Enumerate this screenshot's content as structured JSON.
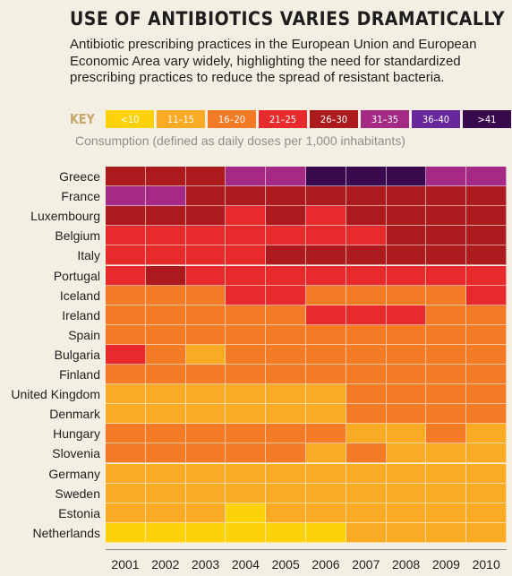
{
  "title": "USE OF ANTIBIOTICS VARIES DRAMATICALLY",
  "subtitle": "Antibiotic prescribing practices in the European Union and European Economic Area vary widely, highlighting the need for standardized prescribing practices to reduce the spread of resistant bacteria.",
  "key": {
    "label": "KEY",
    "items": [
      {
        "label": "<10",
        "color": "#fdd20a"
      },
      {
        "label": "11–15",
        "color": "#fbab23"
      },
      {
        "label": "16–20",
        "color": "#f57a25"
      },
      {
        "label": "21–25",
        "color": "#e82a2c"
      },
      {
        "label": "26–30",
        "color": "#ad1a1d"
      },
      {
        "label": "31–35",
        "color": "#a52a86"
      },
      {
        "label": "36–40",
        "color": "#68279a"
      },
      {
        "label": ">41",
        "color": "#3a0a4f"
      }
    ],
    "note": "Consumption (defined as daily doses per 1,000 inhabitants)"
  },
  "chart_data": {
    "type": "heatmap",
    "x": [
      "2001",
      "2002",
      "2003",
      "2004",
      "2005",
      "2006",
      "2007",
      "2008",
      "2009",
      "2010"
    ],
    "y": [
      "Greece",
      "France",
      "Luxembourg",
      "Belgium",
      "Italy",
      "Portugal",
      "Iceland",
      "Ireland",
      "Spain",
      "Bulgaria",
      "Finland",
      "United Kingdom",
      "Denmark",
      "Hungary",
      "Slovenia",
      "Germany",
      "Sweden",
      "Estonia",
      "Netherlands"
    ],
    "value_encoding": "legend category index: 0 = <10, 1 = 11–15, 2 = 16–20, 3 = 21–25, 4 = 26–30, 5 = 31–35, 6 = 36–40, 7 = >41",
    "values": [
      [
        4,
        4,
        4,
        5,
        5,
        7,
        7,
        7,
        5,
        5
      ],
      [
        5,
        5,
        4,
        4,
        4,
        4,
        4,
        4,
        4,
        4
      ],
      [
        4,
        4,
        4,
        3,
        4,
        3,
        4,
        4,
        4,
        4
      ],
      [
        3,
        3,
        3,
        3,
        3,
        3,
        3,
        4,
        4,
        4
      ],
      [
        3,
        3,
        3,
        3,
        4,
        4,
        4,
        4,
        4,
        4
      ],
      [
        3,
        4,
        3,
        3,
        3,
        3,
        3,
        3,
        3,
        3
      ],
      [
        2,
        2,
        2,
        3,
        3,
        2,
        2,
        2,
        2,
        3
      ],
      [
        2,
        2,
        2,
        2,
        2,
        3,
        3,
        3,
        2,
        2
      ],
      [
        2,
        2,
        2,
        2,
        2,
        2,
        2,
        2,
        2,
        2
      ],
      [
        3,
        2,
        1,
        2,
        2,
        2,
        2,
        2,
        2,
        2
      ],
      [
        2,
        2,
        2,
        2,
        2,
        2,
        2,
        2,
        2,
        2
      ],
      [
        1,
        1,
        1,
        1,
        1,
        1,
        2,
        2,
        2,
        2
      ],
      [
        1,
        1,
        1,
        1,
        1,
        1,
        2,
        2,
        2,
        2
      ],
      [
        2,
        2,
        2,
        2,
        2,
        2,
        1,
        1,
        2,
        1
      ],
      [
        2,
        2,
        2,
        2,
        2,
        1,
        2,
        1,
        1,
        1
      ],
      [
        1,
        1,
        1,
        1,
        1,
        1,
        1,
        1,
        1,
        1
      ],
      [
        1,
        1,
        1,
        1,
        1,
        1,
        1,
        1,
        1,
        1
      ],
      [
        1,
        1,
        1,
        0,
        1,
        1,
        1,
        1,
        1,
        1
      ],
      [
        0,
        0,
        0,
        0,
        0,
        0,
        1,
        1,
        1,
        1
      ]
    ]
  }
}
